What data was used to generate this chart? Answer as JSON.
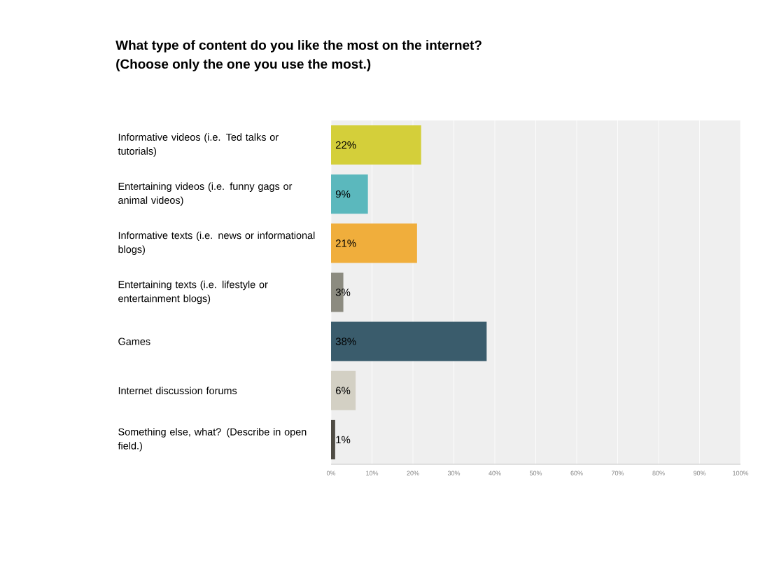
{
  "chart_data": {
    "type": "bar",
    "orientation": "horizontal",
    "title": "What type of content do you like the most on the internet?",
    "subtitle": "(Choose only the one you use the most.)",
    "categories": [
      "Informative videos (i.e. Ted talks or tutorials)",
      "Entertaining videos (i.e. funny gags or animal videos)",
      "Informative texts (i.e. news or informational blogs)",
      "Entertaining texts (i.e. lifestyle or entertainment blogs)",
      "Games",
      "Internet discussion forums",
      "Something else, what? (Describe in open field.)"
    ],
    "values": [
      22,
      9,
      21,
      3,
      38,
      6,
      1
    ],
    "value_labels": [
      "22%",
      "9%",
      "21%",
      "3%",
      "38%",
      "6%",
      "1%"
    ],
    "colors": [
      "#d4cf3a",
      "#5bb8bd",
      "#f0ae3c",
      "#8c8b80",
      "#3a5c6c",
      "#d3d0c4",
      "#4f4c44"
    ],
    "xlim": [
      0,
      100
    ],
    "xticks": [
      {
        "value": 0,
        "label": "0%"
      },
      {
        "value": 10,
        "label": "10%"
      },
      {
        "value": 20,
        "label": "20%"
      },
      {
        "value": 30,
        "label": "30%"
      },
      {
        "value": 40,
        "label": "40%"
      },
      {
        "value": 50,
        "label": "50%"
      },
      {
        "value": 60,
        "label": "60%"
      },
      {
        "value": 70,
        "label": "70%"
      },
      {
        "value": 80,
        "label": "80%"
      },
      {
        "value": 90,
        "label": "90%"
      },
      {
        "value": 100,
        "label": "100%"
      }
    ],
    "grid": "x"
  }
}
